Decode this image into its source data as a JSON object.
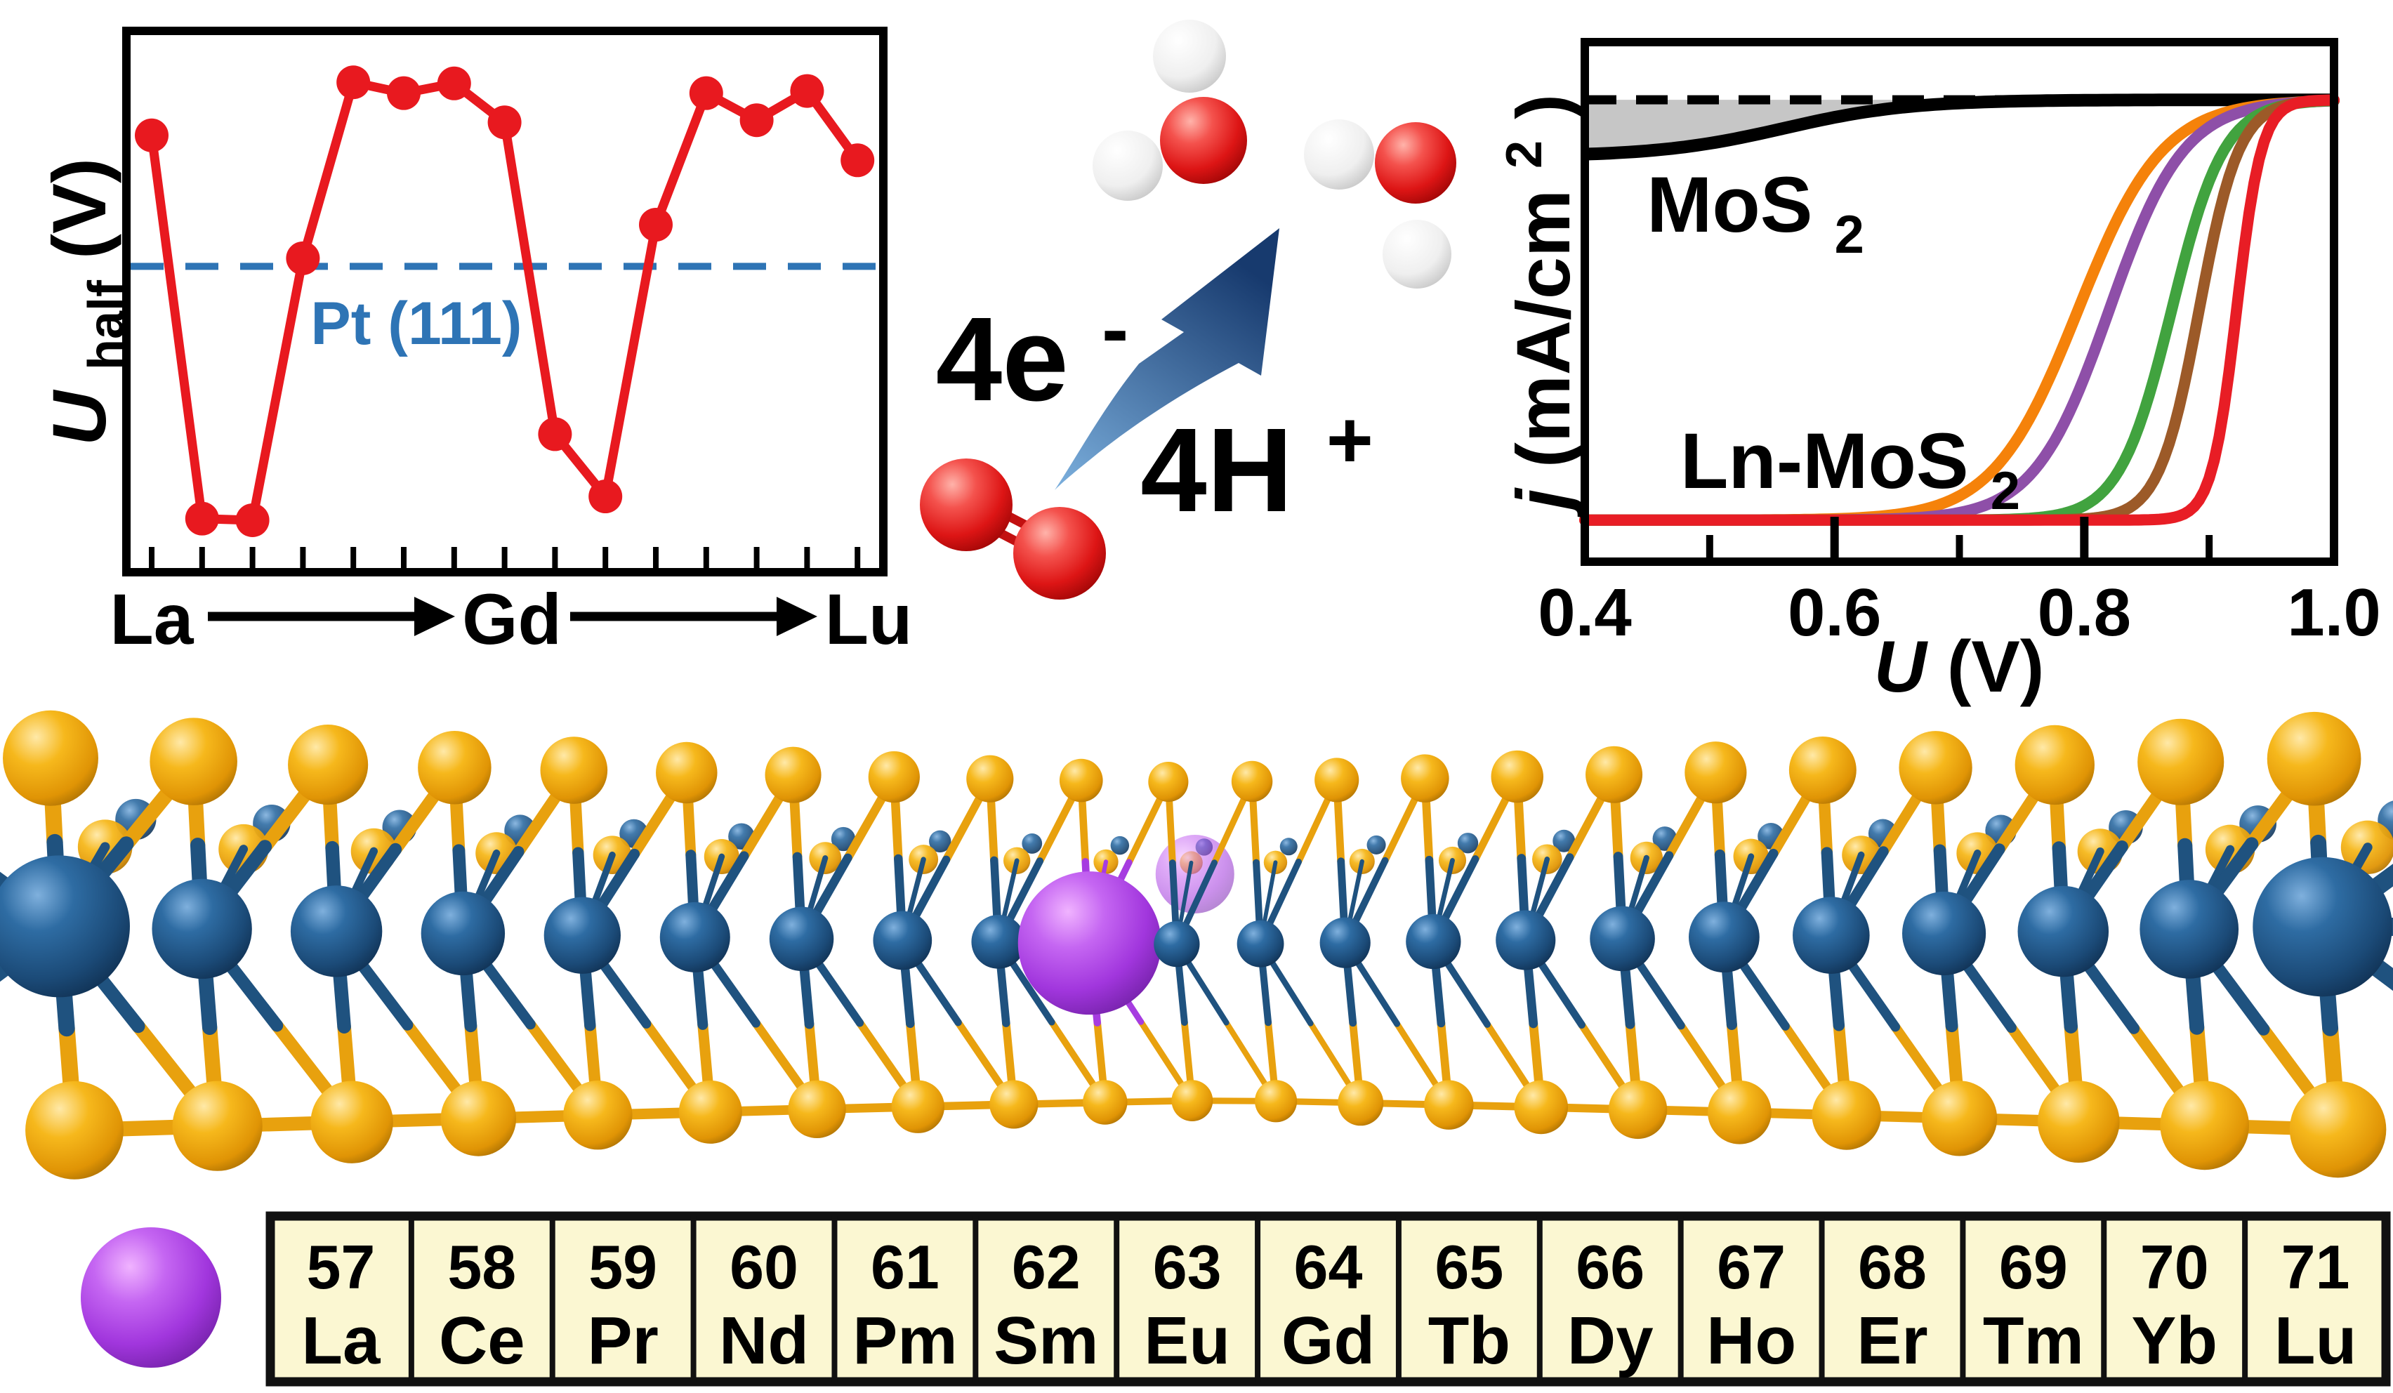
{
  "figure": {
    "background": "#ffffff",
    "description_colors": {
      "series_red": "#e8191f",
      "reference_blue": "#2e74b5",
      "axis_black": "#000000",
      "shade_gray": "#c6c6c6"
    }
  },
  "chart_data": [
    {
      "id": "half-wave-potential-vs-lanthanide",
      "type": "line",
      "ylabel": {
        "base": "U",
        "sub": "half",
        "unit": " (V)"
      },
      "x_sequence": {
        "start": "La",
        "mid": "Gd",
        "end": "Lu"
      },
      "categories": [
        "La",
        "Ce",
        "Pr",
        "Nd",
        "Pm",
        "Sm",
        "Eu",
        "Gd",
        "Tb",
        "Dy",
        "Ho",
        "Er",
        "Tm",
        "Yb",
        "Lu"
      ],
      "values_relative": [
        0.807,
        0.099,
        0.096,
        0.58,
        0.905,
        0.885,
        0.903,
        0.831,
        0.255,
        0.14,
        0.642,
        0.885,
        0.835,
        0.889,
        0.761
      ],
      "reference": {
        "label": "Pt (111)",
        "level_relative": 0.565,
        "color": "#2e74b5",
        "style": "dashed"
      },
      "series_color": "#e8191f",
      "grid": false,
      "legend": "none"
    },
    {
      "id": "orr-polarization-curves",
      "type": "line",
      "ylabel": {
        "base": "j",
        "unit": " (mA/cm",
        "sup": "2",
        "close": ")"
      },
      "xlabel": {
        "base": "U",
        "unit": " (V)"
      },
      "x_range": [
        0.4,
        1.0
      ],
      "x_ticks": [
        {
          "label": "0.4",
          "value": 0.4
        },
        {
          "label": "0.6",
          "value": 0.6
        },
        {
          "label": "0.8",
          "value": 0.8
        },
        {
          "label": "1.0",
          "value": 1.0
        }
      ],
      "x_minor_ticks": [
        0.5,
        0.7,
        0.9
      ],
      "limiting_level_rel": 0.889,
      "baseline_rel": 0.08,
      "group_label": {
        "base": "Ln-MoS",
        "sub": "2"
      },
      "series": [
        {
          "name": "MoS2",
          "label": {
            "base": "MoS",
            "sub": "2"
          },
          "color": "#000000",
          "start_rel": 0.78,
          "half_wave_U": 0.56,
          "steepness": 0.05,
          "shaded": true,
          "shade_color": "#c6c6c6",
          "limiting_line_style": "dashed"
        },
        {
          "name": "Ln-MoS2 curve 1",
          "color": "#f5820a",
          "half_wave_U": 0.795,
          "steepness": 0.034
        },
        {
          "name": "Ln-MoS2 curve 2",
          "color": "#8e4fa8",
          "half_wave_U": 0.82,
          "steepness": 0.03
        },
        {
          "name": "Ln-MoS2 curve 3",
          "color": "#41a33f",
          "half_wave_U": 0.87,
          "steepness": 0.021
        },
        {
          "name": "Ln-MoS2 curve 4",
          "color": "#9c5a28",
          "half_wave_U": 0.892,
          "steepness": 0.016
        },
        {
          "name": "Ln-MoS2 curve 5",
          "color": "#e81d25",
          "half_wave_U": 0.922,
          "steepness": 0.01
        }
      ],
      "grid": false,
      "legend": "none"
    }
  ],
  "reaction": {
    "electrons": {
      "base": "4e",
      "sup": "-"
    },
    "protons": {
      "base": "4H",
      "sup": "+"
    },
    "arrow_colors": {
      "from": "#7cb0de",
      "to": "#173a6e"
    },
    "molecule_colors": {
      "oxygen": "#e51a1a",
      "hydrogen": "#f4f4f4",
      "o2_bond": "#c21010"
    }
  },
  "structure": {
    "sulfur_color": "#f0a80e",
    "molybdenum_color": "#1d4e7e",
    "dopant_color": "#a63ce0",
    "bond_sulfur_color": "#e8a10e",
    "bond_metal_color": "#1f527f",
    "dopant_bond_color": "#a63ce0"
  },
  "periodic_table": {
    "cell_background": "#fbf7d2",
    "border_color": "#111111",
    "legend_sphere_color": "#a63ce0",
    "cells": [
      {
        "number": "57",
        "symbol": "La"
      },
      {
        "number": "58",
        "symbol": "Ce"
      },
      {
        "number": "59",
        "symbol": "Pr"
      },
      {
        "number": "60",
        "symbol": "Nd"
      },
      {
        "number": "61",
        "symbol": "Pm"
      },
      {
        "number": "62",
        "symbol": "Sm"
      },
      {
        "number": "63",
        "symbol": "Eu"
      },
      {
        "number": "64",
        "symbol": "Gd"
      },
      {
        "number": "65",
        "symbol": "Tb"
      },
      {
        "number": "66",
        "symbol": "Dy"
      },
      {
        "number": "67",
        "symbol": "Ho"
      },
      {
        "number": "68",
        "symbol": "Er"
      },
      {
        "number": "69",
        "symbol": "Tm"
      },
      {
        "number": "70",
        "symbol": "Yb"
      },
      {
        "number": "71",
        "symbol": "Lu"
      }
    ]
  }
}
